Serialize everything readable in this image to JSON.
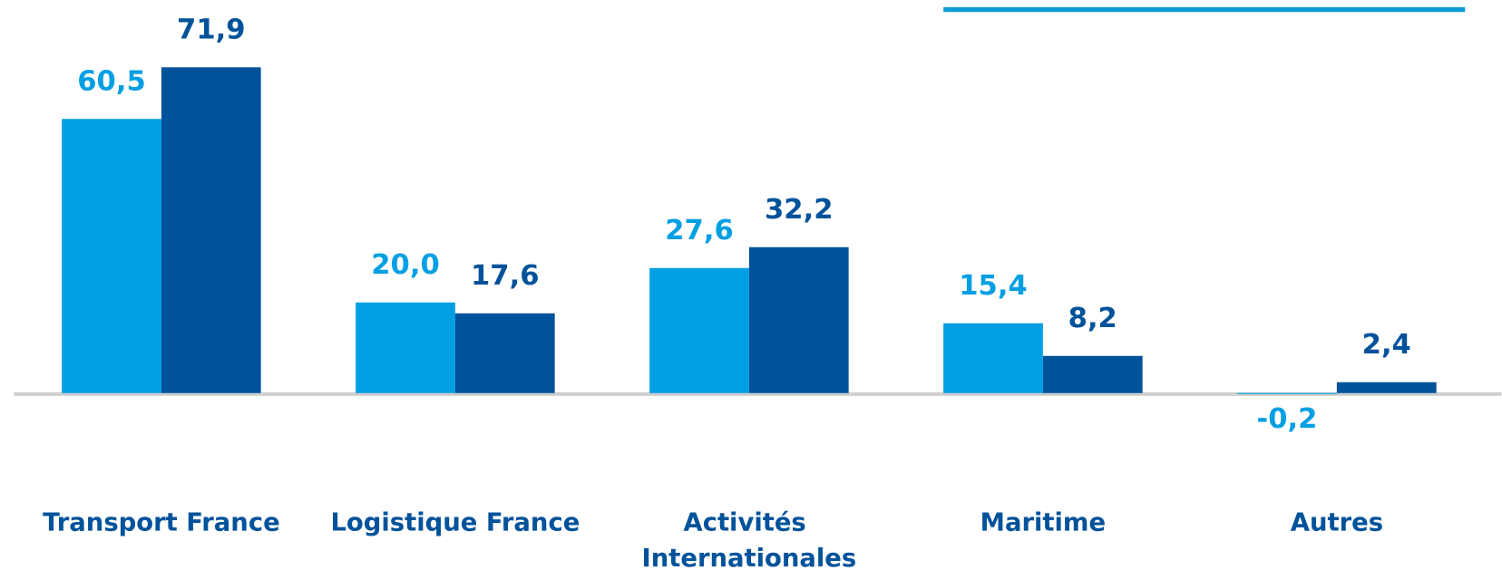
{
  "chart_data": {
    "type": "bar",
    "categories": [
      "Transport France",
      "Logistique France",
      "Activités Internationales",
      "Maritime",
      "Autres"
    ],
    "series": [
      {
        "color": "#009fe3",
        "values": [
          60.5,
          20.0,
          27.6,
          15.4,
          -0.2
        ],
        "value_labels": [
          "60,5",
          "20,0",
          "27,6",
          "15,4",
          "-0,2"
        ]
      },
      {
        "color": "#00529b",
        "values": [
          71.9,
          17.6,
          32.2,
          8.2,
          2.4
        ],
        "value_labels": [
          "71,9",
          "17,6",
          "32,2",
          "8,2",
          "2,4"
        ]
      }
    ],
    "ylim": [
      0,
      80
    ],
    "grid": false
  }
}
